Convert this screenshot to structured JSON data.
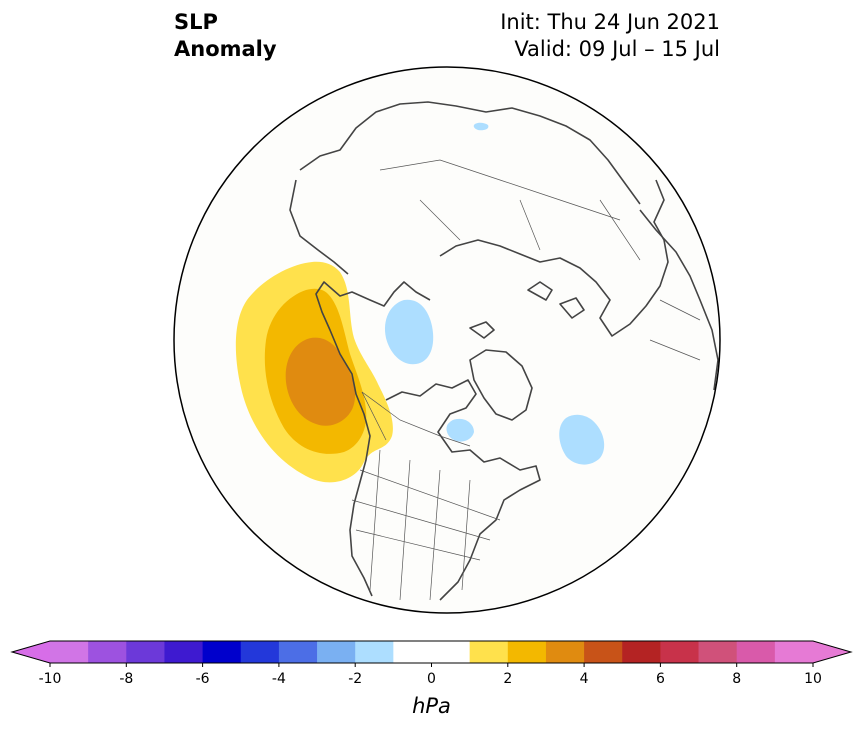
{
  "title": {
    "line1": "SLP",
    "line2": "Anomaly"
  },
  "info": {
    "init": "Init: Thu 24 Jun 2021",
    "valid": "Valid: 09 Jul – 15 Jul"
  },
  "colorbar": {
    "units": "hPa",
    "levels": [
      -10,
      -9,
      -8,
      -7,
      -6,
      -5,
      -4,
      -3,
      -2,
      -1,
      1,
      2,
      3,
      4,
      5,
      6,
      7,
      8,
      9,
      10
    ],
    "neutral_band": [
      -1,
      1
    ],
    "ticks": [
      -10,
      -8,
      -6,
      -4,
      -2,
      0,
      2,
      4,
      6,
      8,
      10
    ],
    "tick_labels": [
      "-10",
      "-8",
      "-6",
      "-4",
      "-2",
      "0",
      "2",
      "4",
      "6",
      "8",
      "10"
    ],
    "colors": [
      "#d175e6",
      "#9d52e0",
      "#6c39d9",
      "#3e1ad0",
      "#0000cc",
      "#2338da",
      "#4c6ee6",
      "#7ab0f2",
      "#addeff",
      "#ffffff",
      "#ffe14c",
      "#f3b800",
      "#e08b10",
      "#c85318",
      "#b42323",
      "#c8324a",
      "#d0517a",
      "#d95aaa",
      "#e67ad5"
    ],
    "extend_min_color": "#d76de8",
    "extend_max_color": "#e67ad5"
  },
  "map": {
    "projection": "north-polar-stereographic",
    "coastline_color": "#444444",
    "positive_anomaly_contours": [
      {
        "level": 1,
        "color": "#ffe14c"
      },
      {
        "level": 2,
        "color": "#f3b800"
      },
      {
        "level": 3,
        "color": "#e08b10"
      }
    ],
    "negative_anomaly_contours": [
      {
        "level": -1,
        "color": "#addeff"
      }
    ]
  }
}
